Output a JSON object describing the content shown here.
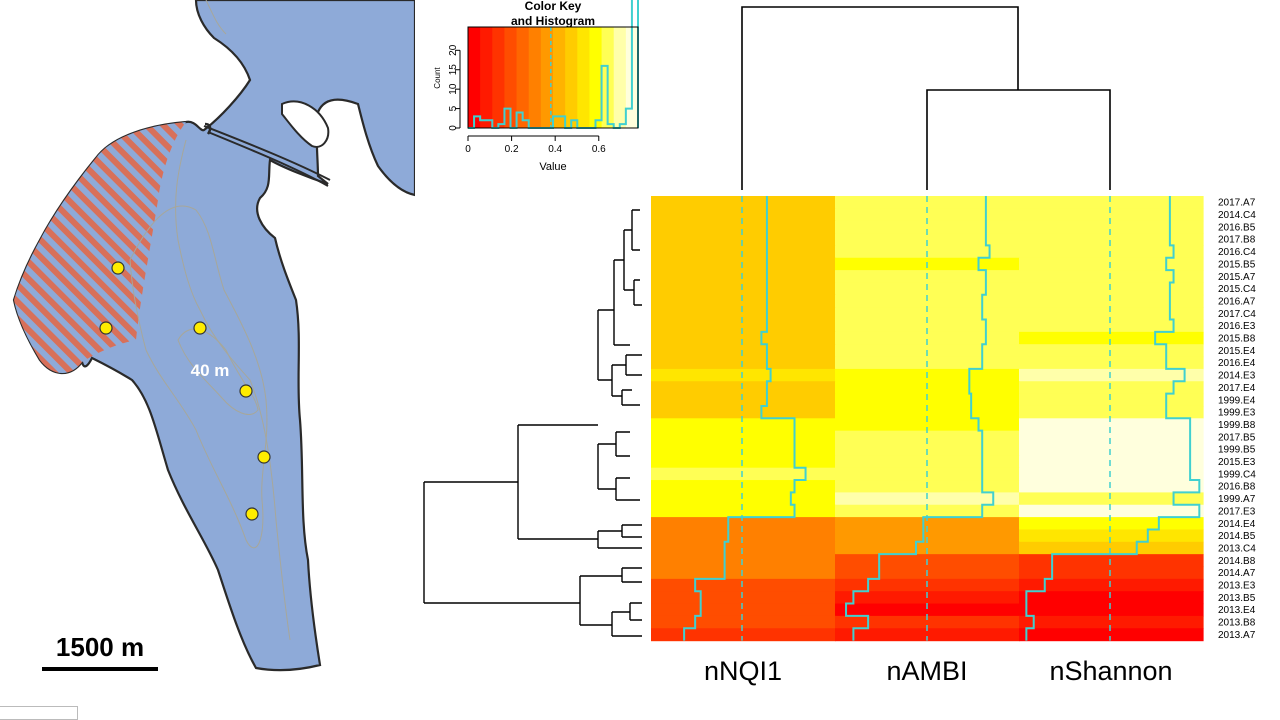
{
  "map": {
    "depth_label": "40 m",
    "scale_label": "1500 m",
    "colors": {
      "water": "#8eaad8",
      "land": "#ffffff",
      "hatch_a": "#d8705a",
      "hatch_b": "#8eaad8",
      "station": "#ffec00"
    }
  },
  "color_key": {
    "title_line1": "Color Key",
    "title_line2": "and Histogram",
    "ylabel": "Count",
    "xlabel": "Value",
    "xticks": [
      "0",
      "0.2",
      "0.4",
      "0.6"
    ],
    "xtick_values": [
      0,
      0.2,
      0.4,
      0.6
    ],
    "yticks": [
      "0",
      "5",
      "10",
      "15",
      "20"
    ],
    "ytick_values": [
      0,
      5,
      10,
      15,
      20
    ],
    "xlim": [
      0,
      0.78
    ],
    "ylim": [
      0,
      26
    ],
    "palette": [
      "#ff0000",
      "#ff1a00",
      "#ff3300",
      "#ff4d00",
      "#ff6600",
      "#ff8000",
      "#ff9900",
      "#ffb300",
      "#ffcc00",
      "#ffe600",
      "#ffff00",
      "#ffff55",
      "#ffffaa",
      "#ffffdd"
    ],
    "histogram_line_color": "#40d0d0",
    "dashed_value": 0.38
  },
  "chart_data": {
    "type": "heatmap",
    "columns": [
      "nNQI1",
      "nAMBI",
      "nShannon"
    ],
    "rows": [
      "2017.A7",
      "2014.C4",
      "2016.B5",
      "2017.B8",
      "2016.C4",
      "2015.B5",
      "2015.A7",
      "2015.C4",
      "2016.A7",
      "2017.C4",
      "2016.E3",
      "2015.B8",
      "2015.E4",
      "2016.E4",
      "2014.E3",
      "2017.E4",
      "1999.E4",
      "1999.E3",
      "1999.B8",
      "2017.B5",
      "1999.B5",
      "2015.E3",
      "1999.C4",
      "2016.B8",
      "1999.A7",
      "2017.E3",
      "2014.E4",
      "2014.B5",
      "2013.C4",
      "2014.B8",
      "2014.A7",
      "2013.E3",
      "2013.B5",
      "2013.E4",
      "2013.B8",
      "2013.A7"
    ],
    "values": [
      [
        0.63,
        0.82,
        0.82
      ],
      [
        0.63,
        0.82,
        0.82
      ],
      [
        0.63,
        0.82,
        0.82
      ],
      [
        0.63,
        0.82,
        0.82
      ],
      [
        0.63,
        0.84,
        0.84
      ],
      [
        0.63,
        0.78,
        0.8
      ],
      [
        0.63,
        0.82,
        0.84
      ],
      [
        0.63,
        0.82,
        0.82
      ],
      [
        0.63,
        0.8,
        0.82
      ],
      [
        0.63,
        0.8,
        0.82
      ],
      [
        0.63,
        0.82,
        0.84
      ],
      [
        0.6,
        0.82,
        0.74
      ],
      [
        0.63,
        0.8,
        0.8
      ],
      [
        0.63,
        0.8,
        0.8
      ],
      [
        0.65,
        0.73,
        0.9
      ],
      [
        0.63,
        0.73,
        0.84
      ],
      [
        0.63,
        0.74,
        0.8
      ],
      [
        0.6,
        0.74,
        0.8
      ],
      [
        0.78,
        0.78,
        0.93
      ],
      [
        0.78,
        0.8,
        0.93
      ],
      [
        0.78,
        0.8,
        0.93
      ],
      [
        0.78,
        0.8,
        0.93
      ],
      [
        0.84,
        0.8,
        0.93
      ],
      [
        0.78,
        0.8,
        0.98
      ],
      [
        0.76,
        0.86,
        0.84
      ],
      [
        0.78,
        0.8,
        0.98
      ],
      [
        0.42,
        0.48,
        0.76
      ],
      [
        0.42,
        0.48,
        0.7
      ],
      [
        0.4,
        0.44,
        0.64
      ],
      [
        0.4,
        0.24,
        0.18
      ],
      [
        0.4,
        0.24,
        0.18
      ],
      [
        0.24,
        0.18,
        0.14
      ],
      [
        0.27,
        0.1,
        0.04
      ],
      [
        0.27,
        0.06,
        0.04
      ],
      [
        0.24,
        0.18,
        0.08
      ],
      [
        0.18,
        0.1,
        0.04
      ]
    ],
    "trace_color": "#40d0d0",
    "dendrogram_columns": "nNQI1 joins (nAMBI, nShannon)"
  }
}
